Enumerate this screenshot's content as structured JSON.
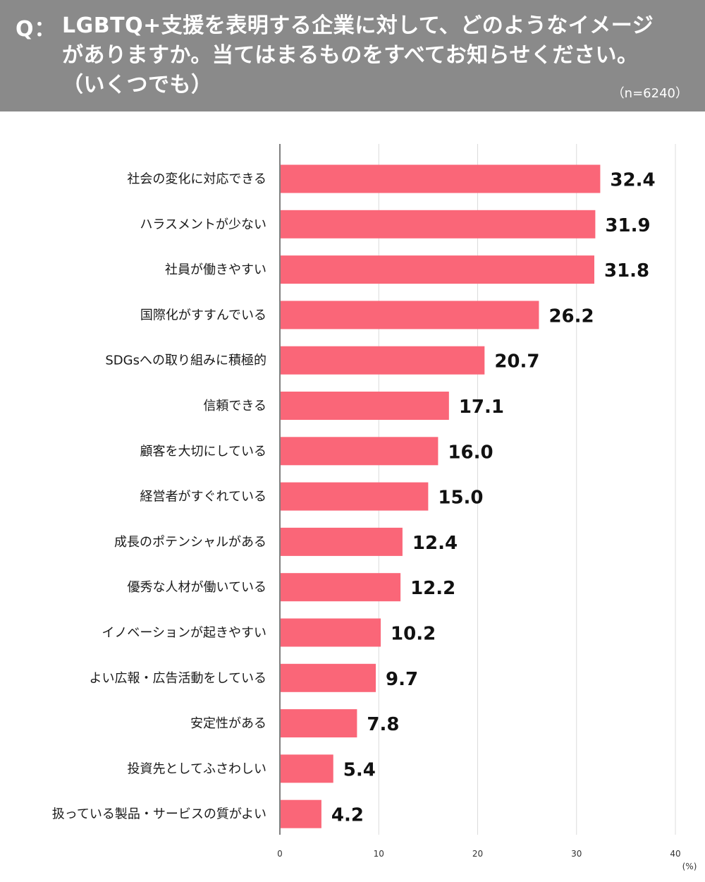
{
  "header": {
    "prefix": "Q：",
    "question_lines": [
      "LGBTQ+支援を表明する企業に対して、どのようなイメージ",
      "がありますか。当てはまるものをすべてお知らせください。",
      "（いくつでも）"
    ],
    "sample_size": "（n=6240）"
  },
  "colors": {
    "bar": "#fa6678",
    "header_bg": "#8a8a8a",
    "grid": "#dcdcdc"
  },
  "chart_data": {
    "type": "bar",
    "orientation": "horizontal",
    "categories": [
      "社会の変化に対応できる",
      "ハラスメントが少ない",
      "社員が働きやすい",
      "国際化がすすんでいる",
      "SDGsへの取り組みに積極的",
      "信頼できる",
      "顧客を大切にしている",
      "経営者がすぐれている",
      "成長のポテンシャルがある",
      "優秀な人材が働いている",
      "イノベーションが起きやすい",
      "よい広報・広告活動をしている",
      "安定性がある",
      "投資先としてふさわしい",
      "扱っている製品・サービスの質がよい"
    ],
    "values": [
      32.4,
      31.9,
      31.8,
      26.2,
      20.7,
      17.1,
      16.0,
      15.0,
      12.4,
      12.2,
      10.2,
      9.7,
      7.8,
      5.4,
      4.2
    ],
    "value_labels": [
      "32.4",
      "31.9",
      "31.8",
      "26.2",
      "20.7",
      "17.1",
      "16.0",
      "15.0",
      "12.4",
      "12.2",
      "10.2",
      "9.7",
      "7.8",
      "5.4",
      "4.2"
    ],
    "xlim": [
      0,
      40
    ],
    "xticks": [
      "0",
      "10",
      "20",
      "30",
      "40"
    ],
    "xunit": "(%)",
    "grid": true
  }
}
